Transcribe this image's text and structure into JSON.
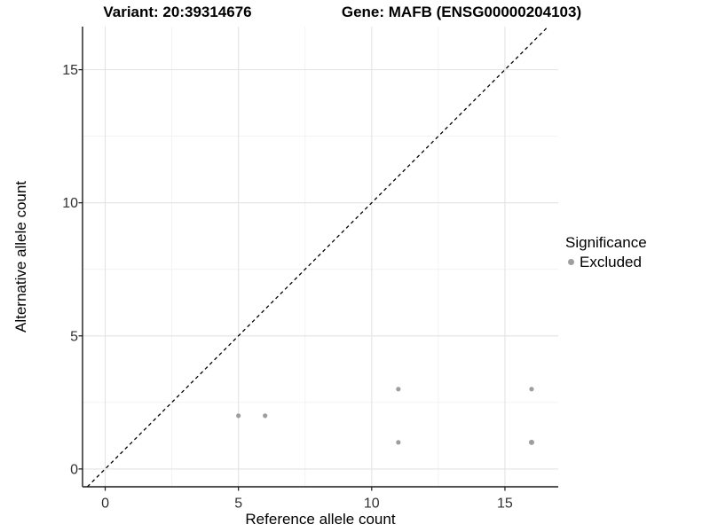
{
  "titles": {
    "variant": "Variant: 20:39314676",
    "gene": "Gene: MAFB (ENSG00000204103)"
  },
  "chart_data": {
    "type": "scatter",
    "xlabel": "Reference allele count",
    "ylabel": "Alternative allele count",
    "xlim": [
      -0.85,
      17.0
    ],
    "ylim": [
      -0.67,
      16.62
    ],
    "xticks": {
      "major": [
        0,
        5,
        10,
        15
      ],
      "minor": [
        2.5,
        7.5,
        12.5
      ]
    },
    "yticks": {
      "major": [
        0,
        5,
        10,
        15
      ],
      "minor": [
        2.5,
        7.5,
        12.5
      ]
    },
    "grid": true,
    "identity_line": {
      "slope": 1,
      "intercept": 0,
      "style": "dashed",
      "color": "#000000"
    },
    "series": [
      {
        "name": "Excluded",
        "color": "#9e9e9e",
        "point_radius": 2.6,
        "points": [
          [
            5,
            2
          ],
          [
            6,
            2
          ],
          [
            11,
            1
          ],
          [
            11,
            3
          ],
          [
            16,
            3
          ],
          [
            16,
            1,
            3
          ]
        ]
      }
    ],
    "legend": {
      "title": "Significance",
      "position": "right",
      "items": [
        {
          "label": "Excluded",
          "color": "#9e9e9e"
        }
      ]
    }
  },
  "colors": {
    "grid_major": "#e3e3e3",
    "grid_minor": "#f1f1f1",
    "axis": "#1a1a1a",
    "tick_label": "#303030"
  }
}
